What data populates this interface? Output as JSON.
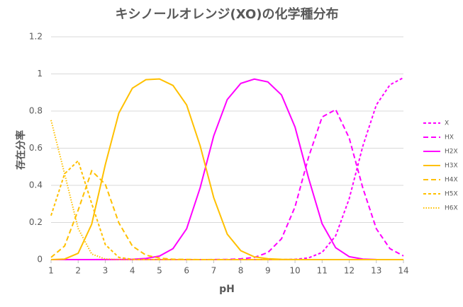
{
  "chart_data": {
    "type": "line",
    "title": "キシノールオレンジ(XO)の化学種分布",
    "x_label": "pH",
    "y_label": "存在分率",
    "x": [
      1,
      1.5,
      2,
      2.5,
      3,
      3.5,
      4,
      4.5,
      5,
      5.5,
      6,
      6.5,
      7,
      7.5,
      8,
      8.5,
      9,
      9.5,
      10,
      10.5,
      11,
      11.5,
      12,
      12.5,
      13,
      13.5,
      14
    ],
    "series": [
      {
        "name": "X",
        "color": "#ff00ff",
        "dash": "short-dash",
        "values": [
          0,
          0,
          0,
          0,
          0,
          0,
          0,
          0,
          0,
          0,
          0,
          0,
          0,
          0,
          0,
          0,
          0,
          0,
          0.0014,
          0.009,
          0.039,
          0.128,
          0.328,
          0.611,
          0.833,
          0.941,
          0.98
        ]
      },
      {
        "name": "HX",
        "color": "#ff00ff",
        "dash": "dash",
        "values": [
          0,
          0,
          0,
          0,
          0,
          0,
          0,
          0,
          0,
          0,
          0,
          0,
          0.0003,
          0.001,
          0.004,
          0.012,
          0.038,
          0.112,
          0.284,
          0.552,
          0.768,
          0.808,
          0.655,
          0.386,
          0.166,
          0.059,
          0.02
        ]
      },
      {
        "name": "H2X",
        "color": "#ff00ff",
        "dash": "solid",
        "values": [
          0,
          0,
          0,
          0,
          0.0002,
          0.0005,
          0.0018,
          0.006,
          0.019,
          0.059,
          0.166,
          0.387,
          0.666,
          0.862,
          0.949,
          0.972,
          0.957,
          0.887,
          0.714,
          0.439,
          0.193,
          0.064,
          0.016,
          0.003,
          0.0004,
          0,
          0
        ]
      },
      {
        "name": "H3X",
        "color": "#ffc000",
        "dash": "solid",
        "values": [
          0.00015,
          0.003,
          0.034,
          0.19,
          0.511,
          0.789,
          0.923,
          0.969,
          0.973,
          0.938,
          0.833,
          0.613,
          0.334,
          0.137,
          0.048,
          0.015,
          0.005,
          0.0014,
          0.0004,
          0,
          0,
          0,
          0,
          0,
          0,
          0,
          0
        ]
      },
      {
        "name": "H4X",
        "color": "#ffc000",
        "dash": "dash",
        "values": [
          0.0119,
          0.073,
          0.266,
          0.478,
          0.406,
          0.198,
          0.073,
          0.024,
          0.008,
          0.002,
          0.001,
          0,
          0,
          0,
          0,
          0,
          0,
          0,
          0,
          0,
          0,
          0,
          0,
          0,
          0,
          0,
          0
        ]
      },
      {
        "name": "H5X",
        "color": "#ffc000",
        "dash": "short-dash",
        "values": [
          0.237,
          0.462,
          0.532,
          0.302,
          0.081,
          0.012,
          0.0015,
          0,
          0,
          0,
          0,
          0,
          0,
          0,
          0,
          0,
          0,
          0,
          0,
          0,
          0,
          0,
          0,
          0,
          0,
          0,
          0
        ]
      },
      {
        "name": "H6X",
        "color": "#ffc000",
        "dash": "dot",
        "values": [
          0.751,
          0.462,
          0.168,
          0.03,
          0.003,
          0.0002,
          0,
          0,
          0,
          0,
          0,
          0,
          0,
          0,
          0,
          0,
          0,
          0,
          0,
          0,
          0,
          0,
          0,
          0,
          0,
          0,
          0
        ]
      }
    ],
    "xlim": [
      1,
      14
    ],
    "xticks": [
      1,
      2,
      3,
      4,
      5,
      6,
      7,
      8,
      9,
      10,
      11,
      12,
      13,
      14
    ],
    "ylim": [
      0,
      1.2
    ],
    "yticks": [
      0,
      0.2,
      0.4,
      0.6,
      0.8,
      1,
      1.2
    ],
    "grid": true,
    "legend": "right"
  }
}
